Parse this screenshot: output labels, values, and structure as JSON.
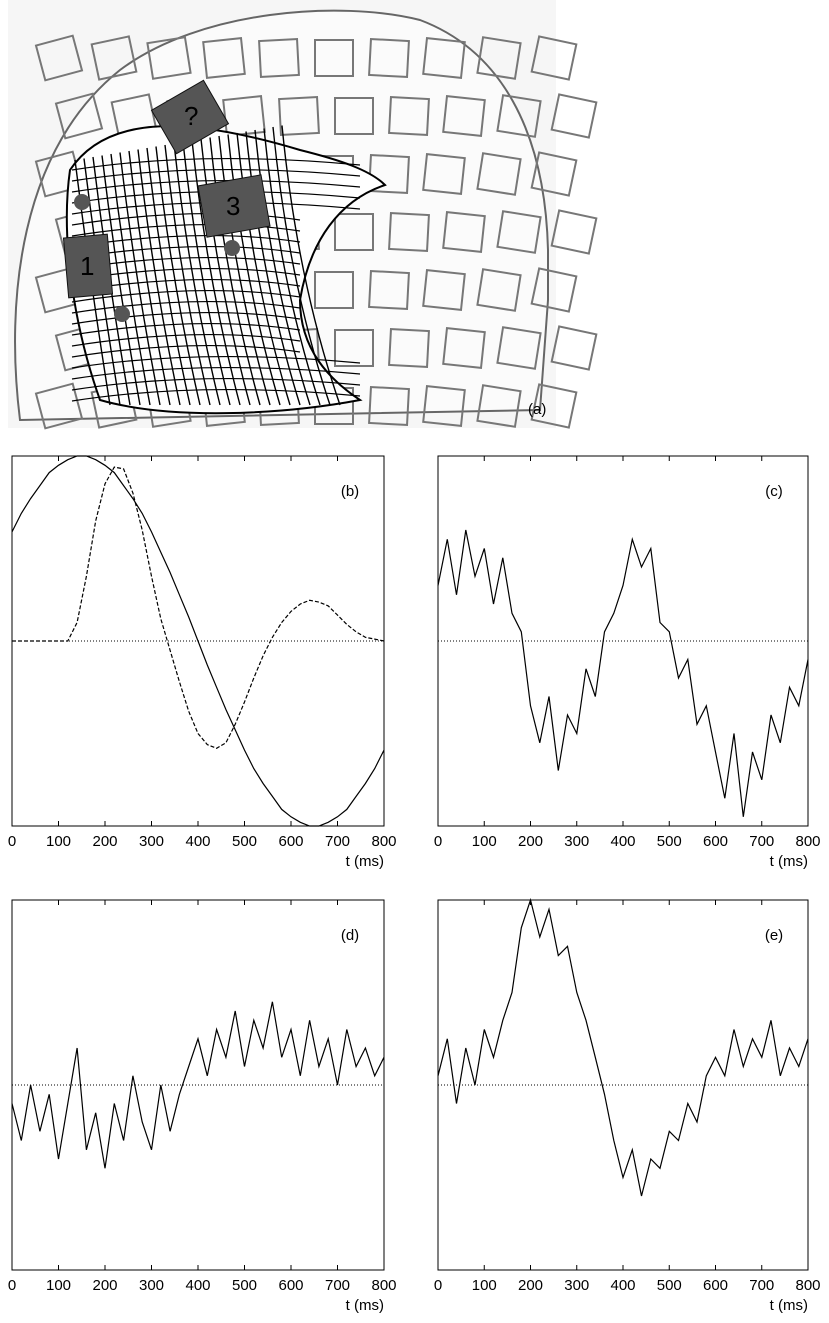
{
  "image": {
    "label": "(a)",
    "markers": [
      "1",
      "?",
      "3"
    ]
  },
  "chart_data": [
    {
      "type": "line",
      "panel_label": "(b)",
      "xlabel": "t (ms)",
      "x": [
        0,
        20,
        40,
        60,
        80,
        100,
        120,
        140,
        160,
        180,
        200,
        220,
        240,
        260,
        280,
        300,
        320,
        340,
        360,
        380,
        400,
        420,
        440,
        460,
        480,
        500,
        520,
        540,
        560,
        580,
        600,
        620,
        640,
        660,
        680,
        700,
        720,
        740,
        760,
        780,
        800
      ],
      "series": [
        {
          "color": "#000000",
          "dash": false,
          "values": [
            0.59,
            0.69,
            0.77,
            0.84,
            0.91,
            0.95,
            0.98,
            1.0,
            1.0,
            0.98,
            0.95,
            0.91,
            0.84,
            0.77,
            0.69,
            0.59,
            0.48,
            0.37,
            0.25,
            0.13,
            0,
            -0.13,
            -0.25,
            -0.37,
            -0.48,
            -0.59,
            -0.69,
            -0.77,
            -0.84,
            -0.91,
            -0.95,
            -0.98,
            -1.0,
            -1.0,
            -0.98,
            -0.95,
            -0.91,
            -0.84,
            -0.77,
            -0.69,
            -0.59
          ]
        },
        {
          "color": "#000000",
          "dash": true,
          "values": [
            0,
            0,
            0,
            0,
            0,
            0,
            0,
            0.1,
            0.35,
            0.65,
            0.85,
            0.94,
            0.93,
            0.8,
            0.6,
            0.35,
            0.12,
            -0.05,
            -0.22,
            -0.38,
            -0.5,
            -0.56,
            -0.58,
            -0.55,
            -0.45,
            -0.33,
            -0.2,
            -0.08,
            0.02,
            0.1,
            0.16,
            0.2,
            0.22,
            0.21,
            0.19,
            0.14,
            0.09,
            0.05,
            0.02,
            0.01,
            0
          ]
        }
      ],
      "xlim": [
        0,
        800
      ],
      "xticks": [
        0,
        100,
        200,
        300,
        400,
        500,
        600,
        700,
        800
      ],
      "ylim": [
        -1,
        1
      ]
    },
    {
      "type": "line",
      "panel_label": "(c)",
      "xlabel": "t (ms)",
      "x": [
        0,
        20,
        40,
        60,
        80,
        100,
        120,
        140,
        160,
        180,
        200,
        220,
        240,
        260,
        280,
        300,
        320,
        340,
        360,
        380,
        400,
        420,
        440,
        460,
        480,
        500,
        520,
        540,
        560,
        580,
        600,
        620,
        640,
        660,
        680,
        700,
        720,
        740,
        760,
        780,
        800
      ],
      "values": [
        0.3,
        0.55,
        0.25,
        0.6,
        0.35,
        0.5,
        0.2,
        0.45,
        0.15,
        0.05,
        -0.35,
        -0.55,
        -0.3,
        -0.7,
        -0.4,
        -0.5,
        -0.15,
        -0.3,
        0.05,
        0.15,
        0.3,
        0.55,
        0.4,
        0.5,
        0.1,
        0.05,
        -0.2,
        -0.1,
        -0.45,
        -0.35,
        -0.6,
        -0.85,
        -0.5,
        -0.95,
        -0.6,
        -0.75,
        -0.4,
        -0.55,
        -0.25,
        -0.35,
        -0.1
      ],
      "color": "#000000",
      "xlim": [
        0,
        800
      ],
      "xticks": [
        0,
        100,
        200,
        300,
        400,
        500,
        600,
        700,
        800
      ],
      "ylim": [
        -1,
        1
      ]
    },
    {
      "type": "line",
      "panel_label": "(d)",
      "xlabel": "t (ms)",
      "x": [
        0,
        20,
        40,
        60,
        80,
        100,
        120,
        140,
        160,
        180,
        200,
        220,
        240,
        260,
        280,
        300,
        320,
        340,
        360,
        380,
        400,
        420,
        440,
        460,
        480,
        500,
        520,
        540,
        560,
        580,
        600,
        620,
        640,
        660,
        680,
        700,
        720,
        740,
        760,
        780,
        800
      ],
      "values": [
        -0.1,
        -0.3,
        0.0,
        -0.25,
        -0.05,
        -0.4,
        -0.1,
        0.2,
        -0.35,
        -0.15,
        -0.45,
        -0.1,
        -0.3,
        0.05,
        -0.2,
        -0.35,
        0.0,
        -0.25,
        -0.05,
        0.1,
        0.25,
        0.05,
        0.3,
        0.15,
        0.4,
        0.1,
        0.35,
        0.2,
        0.45,
        0.15,
        0.3,
        0.05,
        0.35,
        0.1,
        0.25,
        0.0,
        0.3,
        0.1,
        0.2,
        0.05,
        0.15
      ],
      "color": "#000000",
      "xlim": [
        0,
        800
      ],
      "xticks": [
        0,
        100,
        200,
        300,
        400,
        500,
        600,
        700,
        800
      ],
      "ylim": [
        -1,
        1
      ]
    },
    {
      "type": "line",
      "panel_label": "(e)",
      "xlabel": "t (ms)",
      "x": [
        0,
        20,
        40,
        60,
        80,
        100,
        120,
        140,
        160,
        180,
        200,
        220,
        240,
        260,
        280,
        300,
        320,
        340,
        360,
        380,
        400,
        420,
        440,
        460,
        480,
        500,
        520,
        540,
        560,
        580,
        600,
        620,
        640,
        660,
        680,
        700,
        720,
        740,
        760,
        780,
        800
      ],
      "values": [
        0.05,
        0.25,
        -0.1,
        0.2,
        0.0,
        0.3,
        0.15,
        0.35,
        0.5,
        0.85,
        1.0,
        0.8,
        0.95,
        0.7,
        0.75,
        0.5,
        0.35,
        0.15,
        -0.05,
        -0.3,
        -0.5,
        -0.35,
        -0.6,
        -0.4,
        -0.45,
        -0.25,
        -0.3,
        -0.1,
        -0.2,
        0.05,
        0.15,
        0.05,
        0.3,
        0.1,
        0.25,
        0.15,
        0.35,
        0.05,
        0.2,
        0.1,
        0.25
      ],
      "color": "#000000",
      "xlim": [
        0,
        800
      ],
      "xticks": [
        0,
        100,
        200,
        300,
        400,
        500,
        600,
        700,
        800
      ],
      "ylim": [
        -1,
        1
      ]
    }
  ]
}
